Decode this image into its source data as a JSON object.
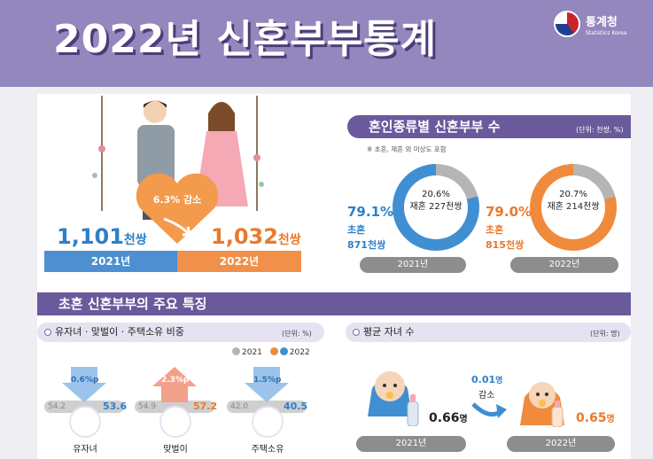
{
  "header": {
    "title": "2022년 신혼부부통계",
    "org_name": "통계청",
    "org_sub": "Statistics Korea"
  },
  "totals": {
    "y2021_value": "1,101",
    "y2021_unit": "천쌍",
    "y2021_label": "2021년",
    "y2022_value": "1,032",
    "y2022_unit": "천쌍",
    "y2022_label": "2022년",
    "change_value": "6.3%",
    "change_word": "감소"
  },
  "marriage_type": {
    "title": "혼인종류별 신혼부부 수",
    "unit": "(단위: 천쌍, %)",
    "note": "※ 초혼, 재혼 외 미상도 포함",
    "y2021": {
      "first_pct": "79.1%",
      "first_label": "초혼",
      "first_count": "871천쌍",
      "re_pct": "20.6%",
      "re_label": "재혼 227천쌍",
      "year": "2021년",
      "first_fraction": 0.791
    },
    "y2022": {
      "first_pct": "79.0%",
      "first_label": "초혼",
      "first_count": "815천쌍",
      "re_pct": "20.7%",
      "re_label": "재혼 214천쌍",
      "year": "2022년",
      "first_fraction": 0.79
    }
  },
  "first_marriage": {
    "section_title": "초혼 신혼부부의 주요 특징",
    "ratio": {
      "title": "유자녀 · 맞벌이 · 주택소유 비중",
      "unit": "(단위: %)",
      "legend_2021": "2021",
      "legend_2022": "2022",
      "items": [
        {
          "label": "유자녀",
          "v2021": "54.2",
          "v2022": "53.6",
          "change": "0.6%p"
        },
        {
          "label": "맞벌이",
          "v2021": "54.9",
          "v2022": "57.2",
          "change": "2.3%p"
        },
        {
          "label": "주택소유",
          "v2021": "42.0",
          "v2022": "40.5",
          "change": "1.5%p"
        }
      ]
    },
    "children": {
      "title": "평균 자녀 수",
      "unit": "(단위: 명)",
      "y2021_value": "0.66",
      "y2021_unit": "명",
      "y2021_year": "2021년",
      "y2022_value": "0.65",
      "y2022_unit": "명",
      "y2022_year": "2022년",
      "change_value": "0.01",
      "change_unit": "명",
      "change_word": "감소"
    }
  },
  "colors": {
    "blue": "#3f8fd2",
    "orange": "#f08a3c",
    "purple": "#6a5a9c",
    "gray": "#b5b5b5"
  }
}
